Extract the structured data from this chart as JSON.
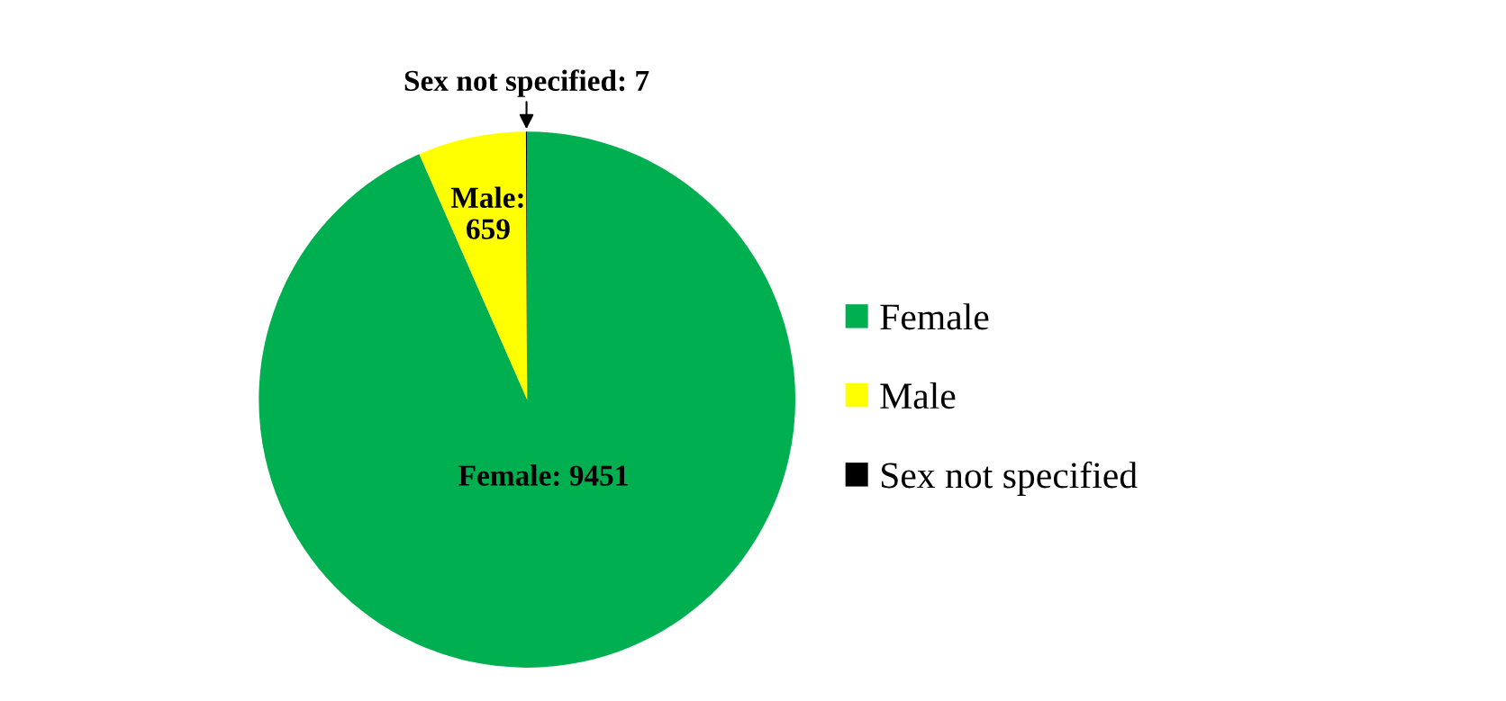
{
  "chart_data": {
    "type": "pie",
    "categories": [
      "Female",
      "Male",
      "Sex not specified"
    ],
    "values": [
      9451,
      659,
      7
    ],
    "colors": [
      "#00b050",
      "#ffff00",
      "#000000"
    ],
    "value_labels": [
      "Female: 9451",
      "Male:\n659",
      "Sex not specified: 7"
    ],
    "legend": "right"
  }
}
